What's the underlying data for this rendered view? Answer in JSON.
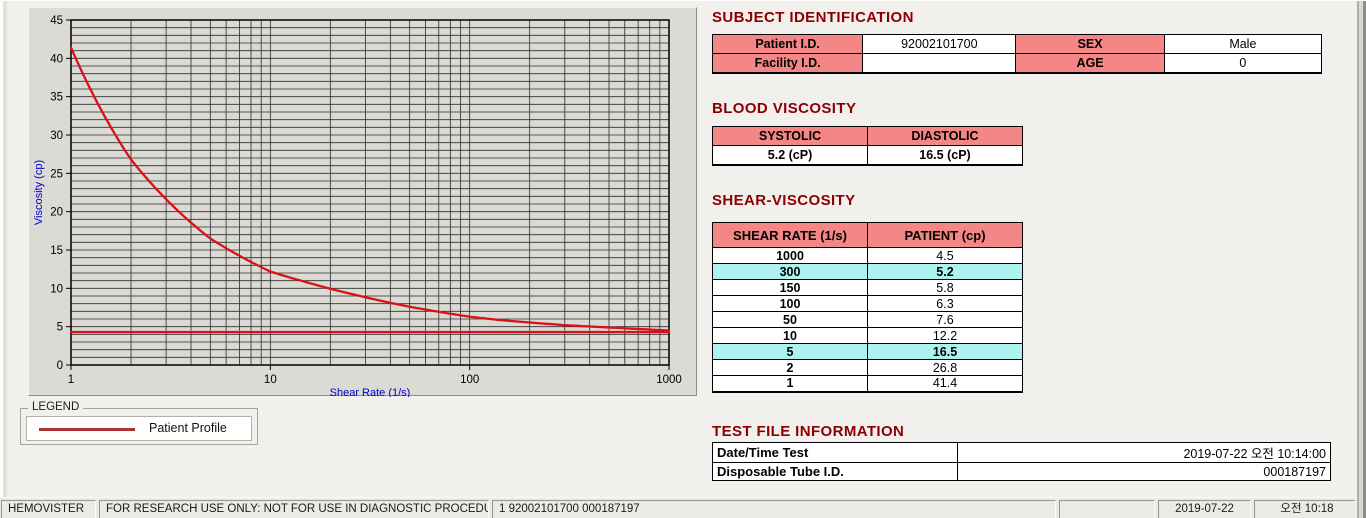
{
  "colors": {
    "accent_maroon": "#8b0000",
    "header_pink": "#f48686",
    "highlight_cyan": "#aef2f0",
    "curve_red": "#da1118",
    "legend_line_red": "#a83232",
    "axis_blue": "#0000cc",
    "panel_gray": "#dcdad4"
  },
  "titles": {
    "subject": "SUBJECT IDENTIFICATION",
    "blood": "BLOOD VISCOSITY",
    "shear": "SHEAR-VISCOSITY",
    "test_file": "TEST FILE INFORMATION"
  },
  "subject": {
    "patient_id_label": "Patient I.D.",
    "patient_id": "92002101700",
    "sex_label": "SEX",
    "sex": "Male",
    "facility_id_label": "Facility I.D.",
    "facility_id": "",
    "age_label": "AGE",
    "age": "0"
  },
  "blood_viscosity": {
    "systolic_label": "SYSTOLIC",
    "diastolic_label": "DIASTOLIC",
    "systolic_value": "5.2 (cP)",
    "diastolic_value": "16.5 (cP)"
  },
  "shear_viscosity": {
    "col1": "SHEAR RATE (1/s)",
    "col2": "PATIENT (cp)",
    "rows": [
      {
        "rate": "1000",
        "value": "4.5",
        "highlight": false
      },
      {
        "rate": "300",
        "value": "5.2",
        "highlight": true
      },
      {
        "rate": "150",
        "value": "5.8",
        "highlight": false
      },
      {
        "rate": "100",
        "value": "6.3",
        "highlight": false
      },
      {
        "rate": "50",
        "value": "7.6",
        "highlight": false
      },
      {
        "rate": "10",
        "value": "12.2",
        "highlight": false
      },
      {
        "rate": "5",
        "value": "16.5",
        "highlight": true
      },
      {
        "rate": "2",
        "value": "26.8",
        "highlight": false
      },
      {
        "rate": "1",
        "value": "41.4",
        "highlight": false
      }
    ]
  },
  "test_file": {
    "rows": [
      {
        "label": "Date/Time Test",
        "value": "2019-07-22   오전 10:14:00"
      },
      {
        "label": "Disposable Tube I.D.",
        "value": "000187197"
      }
    ]
  },
  "legend": {
    "group_label": "LEGEND",
    "series_label": "Patient Profile"
  },
  "status_bar": [
    "HEMOVISTER",
    "FOR RESEARCH USE ONLY: NOT FOR USE IN DIAGNOSTIC PROCEDURES",
    "1  92002101700  000187197",
    "",
    "2019-07-22",
    "오전 10:18"
  ],
  "chart_data": {
    "type": "line",
    "title": "",
    "xlabel": "Shear Rate (1/s)",
    "ylabel": "Viscosity (cp)",
    "x_scale": "log",
    "xlim": [
      1,
      1000
    ],
    "ylim": [
      0,
      45
    ],
    "y_major_step": 5,
    "y_minor_step": 1,
    "x_ticks": [
      1,
      10,
      100,
      1000
    ],
    "grid": true,
    "legend_position": "below-left",
    "series": [
      {
        "name": "Patient Profile",
        "color": "#da1118",
        "points": [
          [
            1,
            41.4
          ],
          [
            2,
            26.8
          ],
          [
            5,
            16.5
          ],
          [
            10,
            12.2
          ],
          [
            50,
            7.6
          ],
          [
            100,
            6.3
          ],
          [
            150,
            5.8
          ],
          [
            300,
            5.2
          ],
          [
            1000,
            4.5
          ]
        ]
      },
      {
        "name": "unlabeled-flat-line",
        "color": "#da1118",
        "points": [
          [
            1,
            4.3
          ],
          [
            1000,
            4.3
          ]
        ]
      }
    ]
  }
}
